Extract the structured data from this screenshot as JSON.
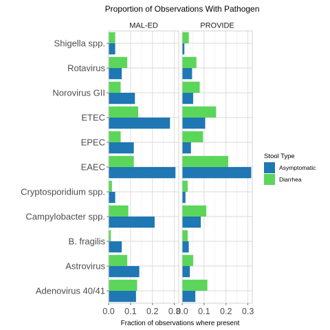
{
  "chart_data": {
    "type": "bar",
    "orientation": "horizontal",
    "title": "Proportion of Observations With Pathogen",
    "xlabel": "Fraction of observations where present",
    "ylabel": "",
    "xlim": [
      0,
      0.32
    ],
    "x_ticks": [
      "0.0",
      "0.1",
      "0.2",
      "0.3"
    ],
    "x_tick_values": [
      0,
      0.1,
      0.2,
      0.3
    ],
    "facets": [
      "MAL-ED",
      "PROVIDE"
    ],
    "categories": [
      "Shigella spp.",
      "Rotavirus",
      "Norovirus GII",
      "ETEC",
      "EPEC",
      "EAEC",
      "Cryptosporidium spp.",
      "Campylobacter spp.",
      "B. fragilis",
      "Astrovirus",
      "Adenovirus 40/41"
    ],
    "legend": {
      "title": "Stool Type",
      "position": "right",
      "entries": [
        {
          "name": "Asymptomatic",
          "color": "#1f77b4"
        },
        {
          "name": "Diarrhea",
          "color": "#5bd65b"
        }
      ]
    },
    "series": [
      {
        "name": "Asymptomatic",
        "color": "#1f77b4",
        "facet_values": {
          "MAL-ED": [
            0.03,
            0.06,
            0.12,
            0.28,
            0.115,
            0.305,
            0.03,
            0.21,
            0.06,
            0.14,
            0.125
          ],
          "PROVIDE": [
            0.01,
            0.045,
            0.05,
            0.105,
            0.04,
            0.315,
            0.015,
            0.085,
            0.03,
            0.035,
            0.06
          ]
        }
      },
      {
        "name": "Diarrhea",
        "color": "#5bd65b",
        "facet_values": {
          "MAL-ED": [
            0.03,
            0.085,
            0.055,
            0.135,
            0.055,
            0.115,
            0.015,
            0.09,
            0.01,
            0.085,
            0.13
          ],
          "PROVIDE": [
            0.03,
            0.065,
            0.08,
            0.155,
            0.095,
            0.21,
            0.025,
            0.11,
            0.025,
            0.05,
            0.115
          ]
        }
      }
    ]
  }
}
